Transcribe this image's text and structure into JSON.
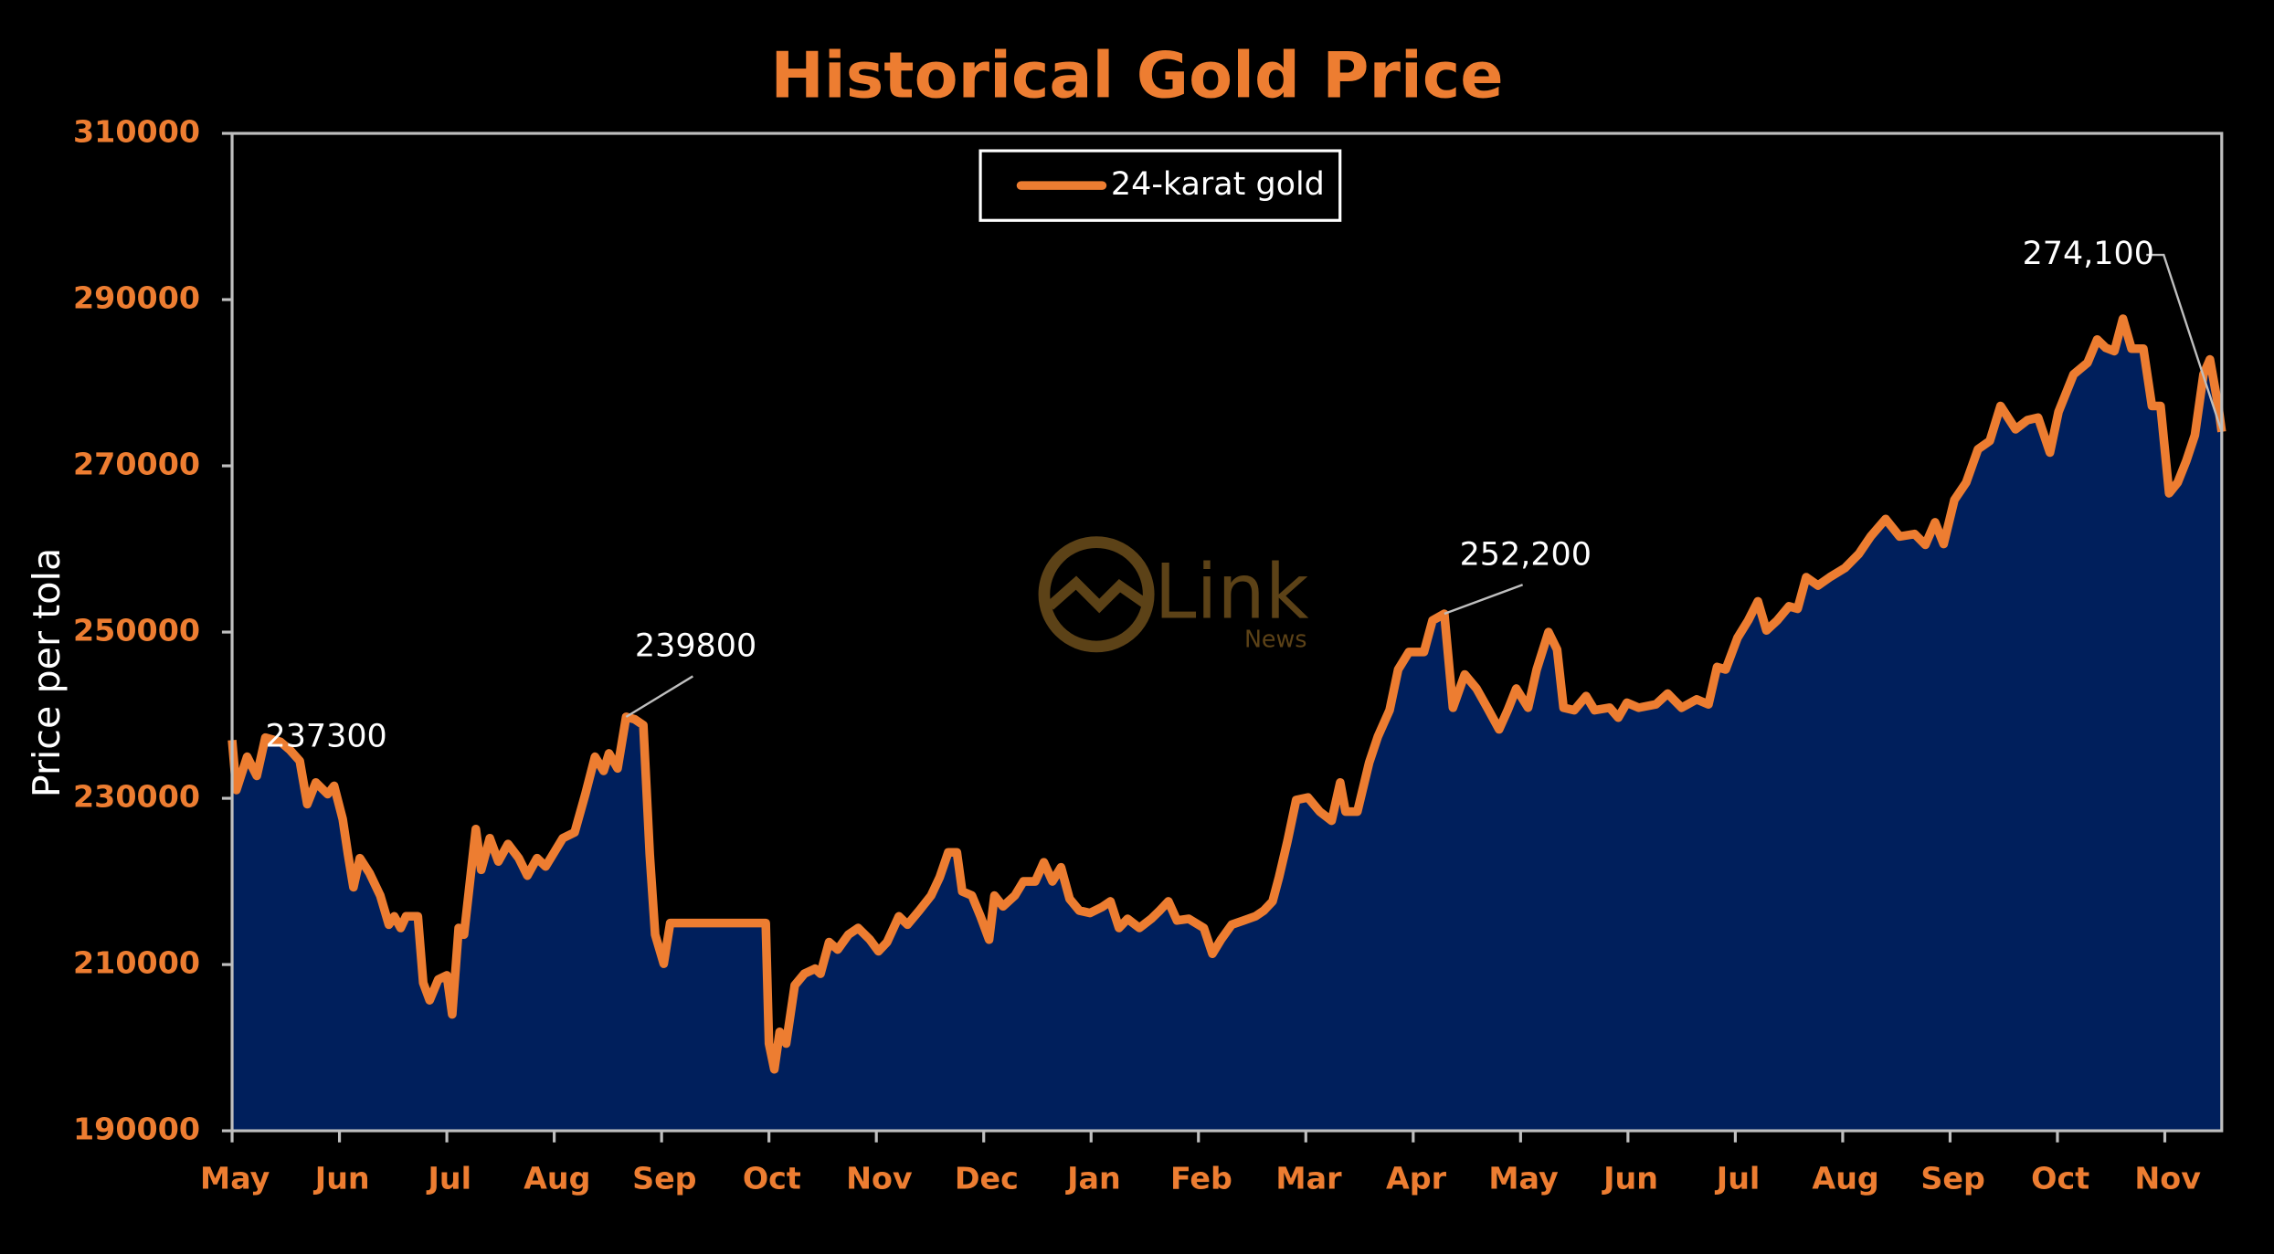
{
  "chart_data": {
    "type": "area",
    "title": "Historical Gold Price",
    "ylabel": "Price per tola",
    "watermark": {
      "text": "Link",
      "subtext": "News"
    },
    "x": [
      0,
      0.04,
      0.14,
      0.23,
      0.31,
      0.45,
      0.54,
      0.63,
      0.7,
      0.78,
      0.89,
      0.95,
      1.03,
      1.08,
      1.13,
      1.19,
      1.28,
      1.38,
      1.46,
      1.51,
      1.57,
      1.62,
      1.73,
      1.78,
      1.84,
      1.92,
      2.0,
      2.05,
      2.11,
      2.16,
      2.27,
      2.32,
      2.4,
      2.48,
      2.57,
      2.67,
      2.75,
      2.84,
      2.92,
      3.0,
      3.08,
      3.19,
      3.29,
      3.38,
      3.46,
      3.51,
      3.59,
      3.67,
      3.75,
      3.83,
      3.89,
      3.94,
      4.02,
      4.08,
      4.97,
      5.0,
      5.05,
      5.1,
      5.16,
      5.24,
      5.33,
      5.43,
      5.48,
      5.56,
      5.64,
      5.74,
      5.83,
      5.94,
      6.02,
      6.1,
      6.21,
      6.29,
      6.4,
      6.51,
      6.59,
      6.67,
      6.75,
      6.8,
      6.89,
      6.97,
      7.05,
      7.1,
      7.18,
      7.29,
      7.37,
      7.48,
      7.56,
      7.64,
      7.72,
      7.8,
      7.89,
      7.99,
      8.1,
      8.18,
      8.26,
      8.34,
      8.45,
      8.56,
      8.64,
      8.72,
      8.8,
      8.91,
      9.05,
      9.13,
      9.21,
      9.31,
      9.42,
      9.53,
      9.61,
      9.69,
      9.75,
      9.83,
      9.91,
      10.02,
      10.13,
      10.24,
      10.32,
      10.37,
      10.48,
      10.59,
      10.67,
      10.78,
      10.86,
      10.96,
      11.1,
      11.18,
      11.29,
      11.37,
      11.48,
      11.59,
      11.69,
      11.8,
      11.88,
      11.96,
      12.07,
      12.15,
      12.26,
      12.34,
      12.4,
      12.5,
      12.61,
      12.69,
      12.83,
      12.91,
      12.99,
      13.1,
      13.26,
      13.37,
      13.5,
      13.64,
      13.75,
      13.83,
      13.91,
      14.02,
      14.12,
      14.21,
      14.29,
      14.39,
      14.5,
      14.58,
      14.66,
      14.77,
      14.88,
      15.02,
      15.15,
      15.26,
      15.4,
      15.53,
      15.67,
      15.77,
      15.86,
      15.94,
      16.04,
      16.15,
      16.26,
      16.37,
      16.47,
      16.61,
      16.72,
      16.82,
      16.93,
      17.01,
      17.15,
      17.28,
      17.37,
      17.45,
      17.53,
      17.61,
      17.69,
      17.8,
      17.88,
      17.96,
      18.04,
      18.12,
      18.2,
      18.28,
      18.36,
      18.42,
      18.5,
      18.53
    ],
    "series": [
      {
        "name": "24-karat gold",
        "color": "#ED7D31",
        "fill": "#001F5C",
        "values": [
          237000,
          231000,
          235000,
          232700,
          237300,
          236800,
          235800,
          234500,
          229300,
          231900,
          230500,
          231500,
          227500,
          223200,
          219300,
          222800,
          221000,
          218300,
          214800,
          215800,
          214400,
          215800,
          215800,
          207800,
          205700,
          208200,
          208700,
          204000,
          214400,
          213600,
          226300,
          221400,
          225200,
          222400,
          224500,
          222800,
          220700,
          222800,
          221800,
          223500,
          225200,
          225900,
          230500,
          235000,
          233300,
          235400,
          233600,
          239800,
          239500,
          238800,
          223200,
          213600,
          210100,
          215000,
          215000,
          200500,
          197400,
          201900,
          200500,
          207500,
          208900,
          209500,
          208900,
          212700,
          211800,
          213600,
          214400,
          213000,
          211600,
          212700,
          215800,
          214800,
          216500,
          218300,
          220500,
          223500,
          223500,
          218800,
          218300,
          215800,
          213000,
          218300,
          217000,
          218300,
          220000,
          220000,
          222300,
          220000,
          221700,
          217900,
          216500,
          216200,
          216900,
          217600,
          214400,
          215500,
          214400,
          215500,
          216500,
          217600,
          215300,
          215500,
          214400,
          211300,
          213000,
          214800,
          215300,
          215800,
          216500,
          217600,
          220500,
          224900,
          229800,
          230100,
          228400,
          227300,
          231900,
          228400,
          228400,
          234300,
          237400,
          240600,
          245500,
          247600,
          247600,
          251400,
          252200,
          240900,
          244900,
          243200,
          240900,
          238300,
          240600,
          243200,
          240900,
          245500,
          250000,
          247900,
          240900,
          240600,
          242300,
          240600,
          240900,
          239700,
          241500,
          240900,
          241300,
          242600,
          240900,
          241900,
          241300,
          245800,
          245500,
          249300,
          251400,
          253700,
          250200,
          251400,
          253100,
          252800,
          256600,
          255600,
          256600,
          257700,
          259400,
          261500,
          263600,
          261500,
          261800,
          260500,
          263200,
          260600,
          265900,
          268000,
          272000,
          273000,
          277200,
          274400,
          275500,
          275800,
          271600,
          276500,
          281000,
          282400,
          285200,
          284200,
          283800,
          287700,
          284100,
          284100,
          277200,
          277200,
          266700,
          268000,
          270600,
          273700,
          281000,
          282800,
          277000,
          274100
        ]
      }
    ],
    "annotations": [
      {
        "text": "237300",
        "x": 0.31,
        "y": 237300
      },
      {
        "text": "239800",
        "x": 3.67,
        "y": 239800
      },
      {
        "text": "252,200",
        "x": 11.29,
        "y": 252200
      },
      {
        "text": "274,100",
        "x": 18.53,
        "y": 274100
      }
    ],
    "xlim": [
      0,
      18.53
    ],
    "xticks": [
      {
        "value": 0,
        "label": "May"
      },
      {
        "value": 1,
        "label": "Jun"
      },
      {
        "value": 2,
        "label": "Jul"
      },
      {
        "value": 3,
        "label": "Aug"
      },
      {
        "value": 4,
        "label": "Sep"
      },
      {
        "value": 5,
        "label": "Oct"
      },
      {
        "value": 6,
        "label": "Nov"
      },
      {
        "value": 7,
        "label": "Dec"
      },
      {
        "value": 8,
        "label": "Jan"
      },
      {
        "value": 9,
        "label": "Feb"
      },
      {
        "value": 10,
        "label": "Mar"
      },
      {
        "value": 11,
        "label": "Apr"
      },
      {
        "value": 12,
        "label": "May"
      },
      {
        "value": 13,
        "label": "Jun"
      },
      {
        "value": 14,
        "label": "Jul"
      },
      {
        "value": 15,
        "label": "Aug"
      },
      {
        "value": 16,
        "label": "Sep"
      },
      {
        "value": 17,
        "label": "Oct"
      },
      {
        "value": 18,
        "label": "Nov"
      }
    ],
    "ylim": [
      190000,
      310000
    ],
    "yticks": [
      190000,
      210000,
      230000,
      250000,
      270000,
      290000,
      310000
    ],
    "grid": false,
    "legend": "top"
  }
}
